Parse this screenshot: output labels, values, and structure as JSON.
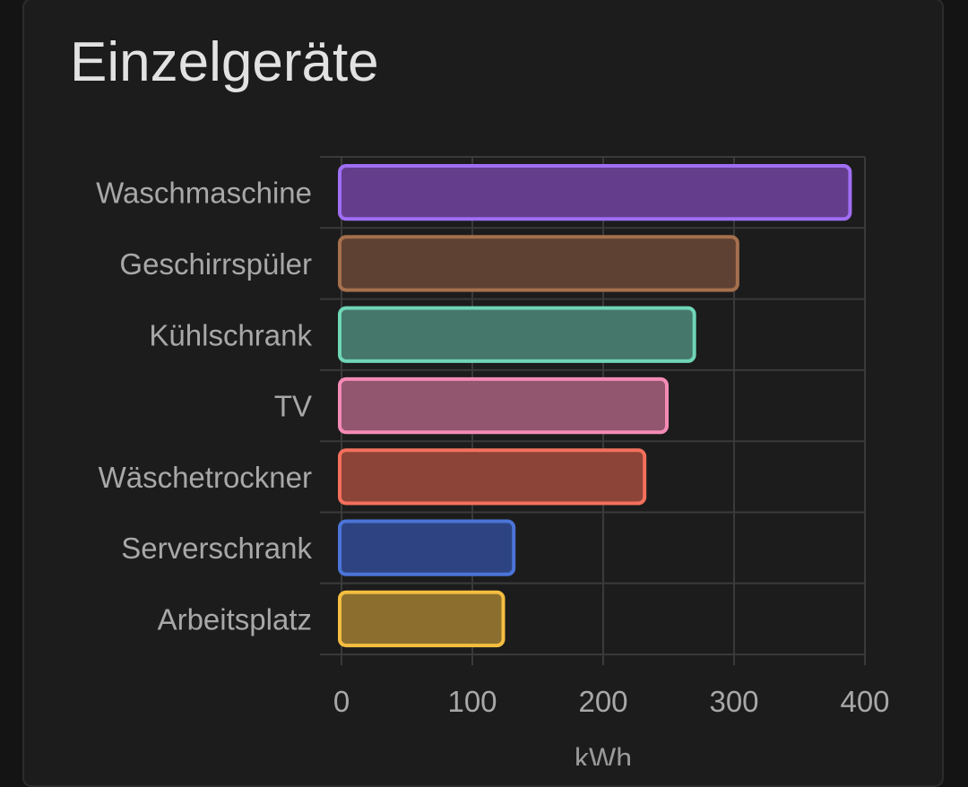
{
  "card": {
    "title": "Einzelgeräte"
  },
  "chart_data": {
    "type": "bar",
    "orientation": "horizontal",
    "categories": [
      "Waschmaschine",
      "Geschirrspüler",
      "Kühlschrank",
      "TV",
      "Wäschetrockner",
      "Serverschrank",
      "Arbeitsplatz"
    ],
    "values": [
      390,
      304,
      271,
      250,
      233,
      133,
      125
    ],
    "colors": [
      "#a06ef5",
      "#a5704d",
      "#6fd6b6",
      "#f48bb6",
      "#f4705c",
      "#4b74d8",
      "#f5be40"
    ],
    "fill_colors": [
      "#643e8c",
      "#5e4133",
      "#45776a",
      "#93566f",
      "#8d4438",
      "#2e4482",
      "#8c6f2f"
    ],
    "xlim": [
      0,
      400
    ],
    "xticks": [
      "0",
      "100",
      "200",
      "300",
      "400"
    ],
    "xlabel": "kWh",
    "ylabel": "",
    "grid": true
  }
}
